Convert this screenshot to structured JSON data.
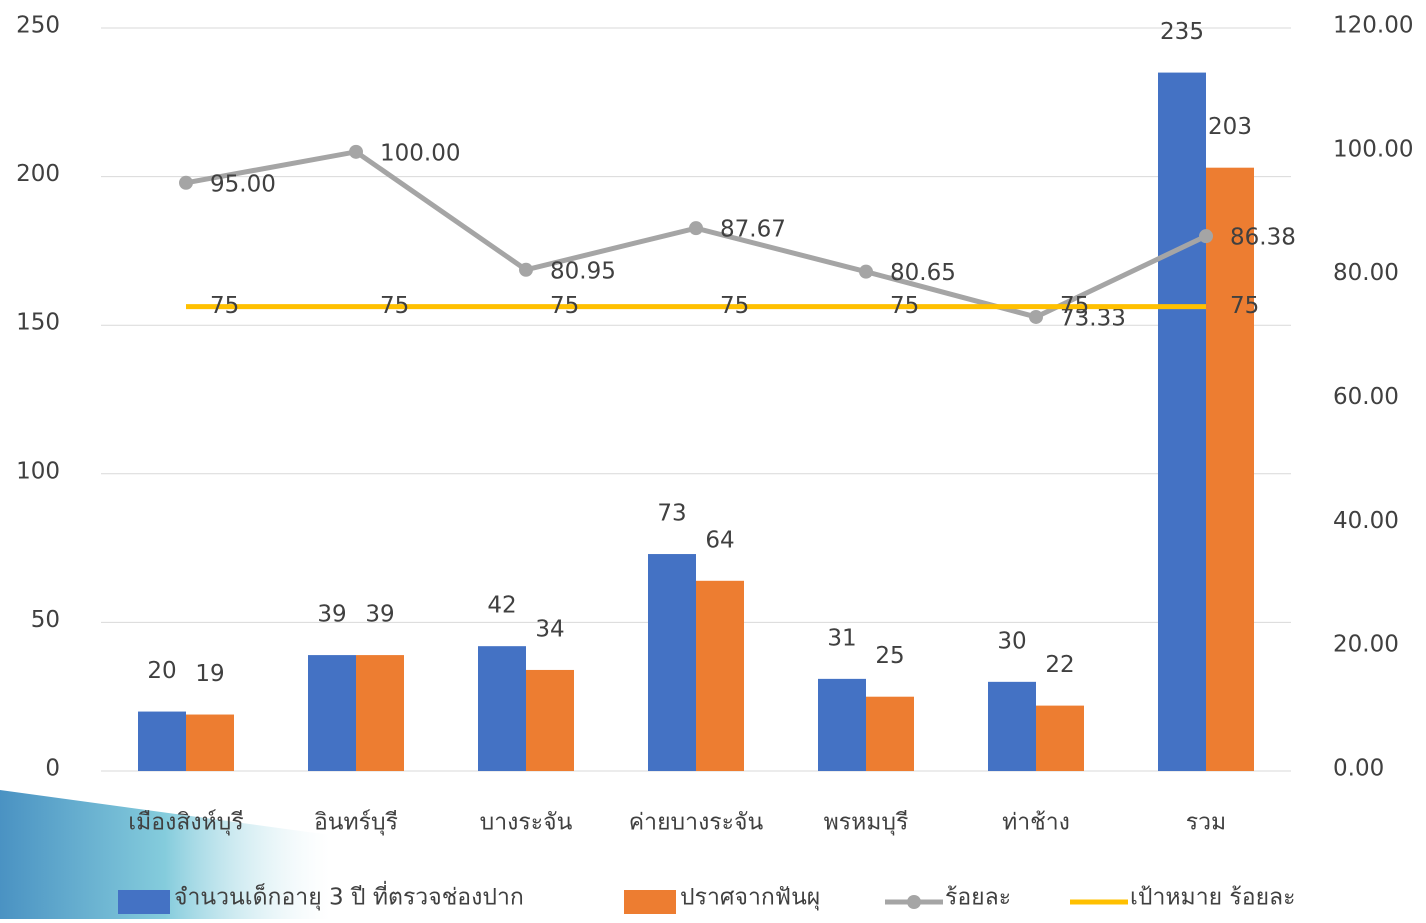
{
  "chart_data": {
    "type": "bar-line",
    "categories": [
      "เมืองสิงห์บุรี",
      "อินทร์บุรี",
      "บางระจัน",
      "ค่ายบางระจัน",
      "พรหมบุรี",
      "ท่าช้าง",
      "รวม"
    ],
    "series": [
      {
        "name": "จำนวนเด็กอายุ 3 ปี ที่ตรวจช่องปาก",
        "type": "bar",
        "color": "#4472c4",
        "values": [
          20,
          39,
          42,
          73,
          31,
          30,
          235
        ]
      },
      {
        "name": "ปราศจากฟันผุ",
        "type": "bar",
        "color": "#ed7d31",
        "values": [
          19,
          39,
          34,
          64,
          25,
          22,
          203
        ]
      },
      {
        "name": "ร้อยละ",
        "type": "line",
        "axis": "y2",
        "color": "#a5a5a5",
        "values": [
          95,
          100,
          80.95,
          87.67,
          80.65,
          73.33,
          86.38
        ],
        "value_labels": [
          "95.00",
          "100.00",
          "80.95",
          "87.67",
          "80.65",
          "73.33",
          "86.38"
        ]
      },
      {
        "name": "เป้าหมาย ร้อยละ",
        "type": "line",
        "axis": "y2",
        "color": "#ffc000",
        "values": [
          75,
          75,
          75,
          75,
          75,
          75,
          75
        ]
      }
    ],
    "ylim": [
      0,
      250
    ],
    "yticks": [
      0,
      50,
      100,
      150,
      200,
      250
    ],
    "y2lim": [
      0,
      120
    ],
    "y2ticks": [
      {
        "value": 0,
        "label": "0.00"
      },
      {
        "value": 20,
        "label": "20.00"
      },
      {
        "value": 40,
        "label": "40.00"
      },
      {
        "value": 60,
        "label": "60.00"
      },
      {
        "value": 80,
        "label": "80.00"
      },
      {
        "value": 100,
        "label": "100.00"
      },
      {
        "value": 120,
        "label": "120.00"
      }
    ],
    "grid": true,
    "legend": "bottom"
  }
}
